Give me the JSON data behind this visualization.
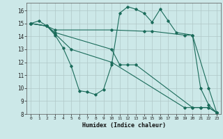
{
  "xlabel": "Humidex (Indice chaleur)",
  "bg_color": "#cce8e8",
  "grid_color": "#b0c8c8",
  "line_color": "#1a6b5a",
  "xlim": [
    -0.5,
    23.5
  ],
  "ylim": [
    8,
    16.6
  ],
  "yticks": [
    8,
    9,
    10,
    11,
    12,
    13,
    14,
    15,
    16
  ],
  "xticks": [
    0,
    1,
    2,
    3,
    4,
    5,
    6,
    7,
    8,
    9,
    10,
    11,
    12,
    13,
    14,
    15,
    16,
    17,
    18,
    19,
    20,
    21,
    22,
    23
  ],
  "series": [
    {
      "x": [
        0,
        1,
        2,
        3,
        4,
        5,
        6,
        7,
        8,
        9,
        10,
        11,
        12,
        13,
        14,
        15,
        16,
        17,
        18,
        20,
        21,
        22,
        23
      ],
      "y": [
        15.0,
        15.2,
        14.8,
        14.1,
        13.1,
        11.7,
        9.8,
        9.7,
        9.5,
        9.9,
        11.8,
        15.8,
        16.3,
        16.1,
        15.8,
        15.1,
        16.1,
        15.2,
        14.3,
        14.1,
        10.0,
        8.7,
        8.1
      ]
    },
    {
      "x": [
        0,
        2,
        3,
        10,
        14,
        15,
        19,
        20,
        22,
        23
      ],
      "y": [
        15.0,
        14.8,
        14.5,
        14.5,
        14.4,
        14.4,
        14.1,
        14.1,
        10.0,
        8.1
      ]
    },
    {
      "x": [
        0,
        2,
        3,
        10,
        11,
        12,
        13,
        20,
        21,
        22,
        23
      ],
      "y": [
        15.0,
        14.8,
        14.3,
        13.0,
        11.8,
        11.8,
        11.8,
        8.5,
        8.5,
        8.5,
        8.1
      ]
    },
    {
      "x": [
        0,
        2,
        3,
        5,
        10,
        19,
        20,
        21,
        22,
        23
      ],
      "y": [
        15.0,
        14.8,
        14.2,
        13.0,
        12.0,
        8.5,
        8.5,
        8.5,
        8.5,
        8.1
      ]
    }
  ]
}
